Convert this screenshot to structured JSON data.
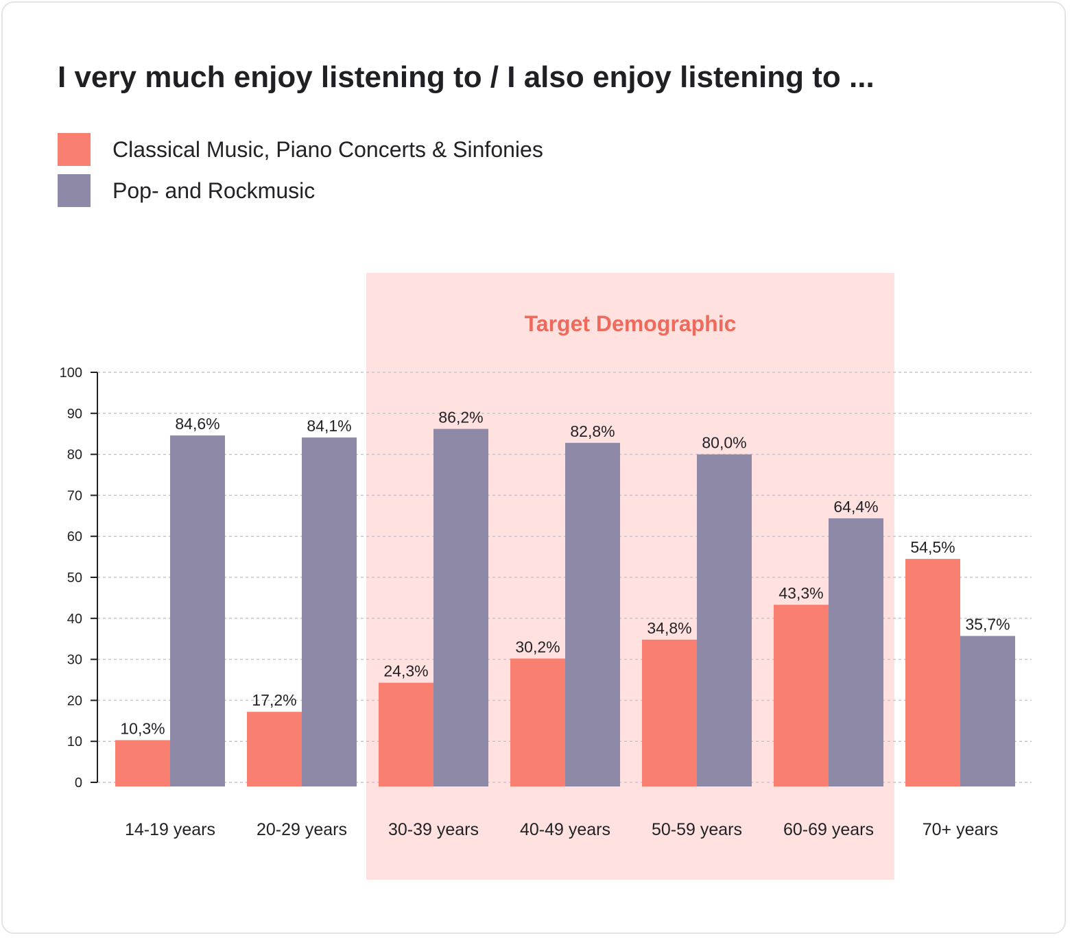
{
  "title": "I very much enjoy listening to / I also enjoy listening to ...",
  "legend": {
    "items": [
      {
        "label": "Classical Music, Piano Concerts & Sinfonies",
        "color": "#f98071"
      },
      {
        "label": "Pop- and Rockmusic",
        "color": "#8d89a7"
      }
    ]
  },
  "colors": {
    "highlight_fill": "#ffe1e0",
    "highlight_text": "#ee6a5c",
    "grid": "#c5c5cb",
    "axis": "#1f1f24"
  },
  "chart_data": {
    "type": "bar",
    "categories": [
      "14-19 years",
      "20-29 years",
      "30-39 years",
      "40-49 years",
      "50-59 years",
      "60-69 years",
      "70+ years"
    ],
    "series": [
      {
        "name": "Classical Music, Piano Concerts & Sinfonies",
        "values": [
          10.3,
          17.2,
          24.3,
          30.2,
          34.8,
          43.3,
          54.5
        ],
        "labels": [
          "10,3%",
          "17,2%",
          "24,3%",
          "30,2%",
          "34,8%",
          "43,3%",
          "54,5%"
        ]
      },
      {
        "name": "Pop- and Rockmusic",
        "values": [
          84.6,
          84.1,
          86.2,
          82.8,
          80.0,
          64.4,
          35.7
        ],
        "labels": [
          "84,6%",
          "84,1%",
          "86,2%",
          "82,8%",
          "80,0%",
          "64,4%",
          "35,7%"
        ]
      }
    ],
    "yticks": [
      "0",
      "10",
      "20",
      "30",
      "40",
      "50",
      "60",
      "70",
      "80",
      "90",
      "100"
    ],
    "ylim": [
      0,
      100
    ],
    "grid": true,
    "highlight": {
      "label": "Target Demographic",
      "categories": [
        "30-39 years",
        "40-49 years",
        "50-59 years",
        "60-69 years"
      ]
    }
  }
}
